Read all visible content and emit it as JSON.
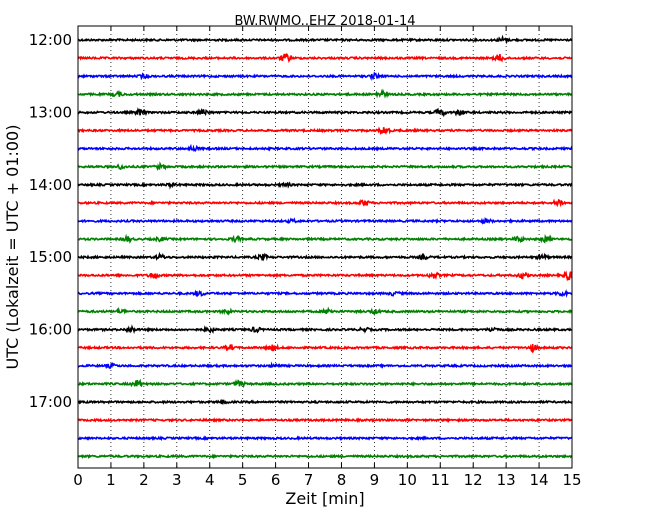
{
  "chart_data": {
    "type": "line",
    "title": "BW.RWMO..EHZ 2018-01-14",
    "xlabel": "Zeit  [min]",
    "ylabel": "UTC (Lokalzeit = UTC + 01:00)",
    "xlim": [
      0,
      15
    ],
    "x_ticks": [
      "0",
      "1",
      "2",
      "3",
      "4",
      "5",
      "6",
      "7",
      "8",
      "9",
      "10",
      "11",
      "12",
      "13",
      "14",
      "15"
    ],
    "y_ticks": [
      {
        "label": "12:00",
        "row": 0
      },
      {
        "label": "13:00",
        "row": 4
      },
      {
        "label": "14:00",
        "row": 8
      },
      {
        "label": "15:00",
        "row": 12
      },
      {
        "label": "16:00",
        "row": 16
      },
      {
        "label": "17:00",
        "row": 20
      }
    ],
    "grid": "vertical-dotted",
    "trace_interval_min": 15,
    "trace_start": "12:00",
    "trace_colors": [
      "#000000",
      "#ff0000",
      "#0000ff",
      "#008000"
    ],
    "traces": [
      {
        "start": "12:00",
        "events": [
          [
            12.9,
            0.5
          ]
        ]
      },
      {
        "start": "12:15",
        "events": [
          [
            6.3,
            0.9
          ],
          [
            12.8,
            0.8
          ]
        ]
      },
      {
        "start": "12:30",
        "events": [
          [
            2.0,
            0.4
          ],
          [
            9.0,
            0.5
          ]
        ]
      },
      {
        "start": "12:45",
        "events": [
          [
            1.2,
            0.5
          ],
          [
            9.2,
            0.7
          ]
        ]
      },
      {
        "start": "13:00",
        "events": [
          [
            1.9,
            0.7
          ],
          [
            3.8,
            0.6
          ],
          [
            11.0,
            0.8
          ],
          [
            11.6,
            0.5
          ]
        ]
      },
      {
        "start": "13:15",
        "events": [
          [
            9.3,
            0.9
          ]
        ]
      },
      {
        "start": "13:30",
        "events": [
          [
            3.5,
            0.5
          ]
        ]
      },
      {
        "start": "13:45",
        "events": [
          [
            1.3,
            0.4
          ],
          [
            2.5,
            0.5
          ]
        ]
      },
      {
        "start": "14:00",
        "events": [
          [
            2.8,
            0.3
          ],
          [
            6.3,
            0.3
          ]
        ]
      },
      {
        "start": "14:15",
        "events": [
          [
            8.7,
            0.6
          ],
          [
            14.6,
            0.7
          ]
        ]
      },
      {
        "start": "14:30",
        "events": [
          [
            6.5,
            0.3
          ],
          [
            12.4,
            0.4
          ]
        ]
      },
      {
        "start": "14:45",
        "events": [
          [
            1.5,
            0.6
          ],
          [
            2.5,
            0.4
          ],
          [
            4.8,
            0.5
          ],
          [
            13.4,
            0.5
          ],
          [
            14.2,
            0.6
          ]
        ]
      },
      {
        "start": "15:00",
        "events": [
          [
            2.5,
            0.5
          ],
          [
            5.6,
            0.6
          ],
          [
            10.5,
            0.4
          ],
          [
            14.1,
            0.5
          ]
        ]
      },
      {
        "start": "15:15",
        "events": [
          [
            2.3,
            0.7
          ],
          [
            10.8,
            0.6
          ],
          [
            13.5,
            0.6
          ],
          [
            14.9,
            0.9
          ]
        ]
      },
      {
        "start": "15:30",
        "events": [
          [
            3.7,
            0.5
          ],
          [
            9.6,
            0.4
          ],
          [
            14.7,
            0.5
          ]
        ]
      },
      {
        "start": "15:45",
        "events": [
          [
            1.3,
            0.4
          ],
          [
            4.5,
            0.4
          ],
          [
            7.6,
            0.5
          ],
          [
            9.0,
            0.4
          ]
        ]
      },
      {
        "start": "16:00",
        "events": [
          [
            1.6,
            0.6
          ],
          [
            4.0,
            0.5
          ],
          [
            5.4,
            0.5
          ],
          [
            8.7,
            0.4
          ],
          [
            12.6,
            0.5
          ]
        ]
      },
      {
        "start": "16:15",
        "events": [
          [
            4.6,
            0.5
          ],
          [
            5.9,
            0.6
          ],
          [
            13.8,
            0.7
          ]
        ]
      },
      {
        "start": "16:30",
        "events": [
          [
            1.0,
            0.4
          ],
          [
            6.0,
            0.3
          ]
        ]
      },
      {
        "start": "16:45",
        "events": [
          [
            1.8,
            0.8
          ],
          [
            4.9,
            0.6
          ]
        ]
      },
      {
        "start": "17:00",
        "events": [
          [
            4.4,
            0.3
          ]
        ]
      },
      {
        "start": "17:15",
        "events": []
      },
      {
        "start": "17:30",
        "events": []
      },
      {
        "start": "17:45",
        "events": []
      }
    ]
  }
}
